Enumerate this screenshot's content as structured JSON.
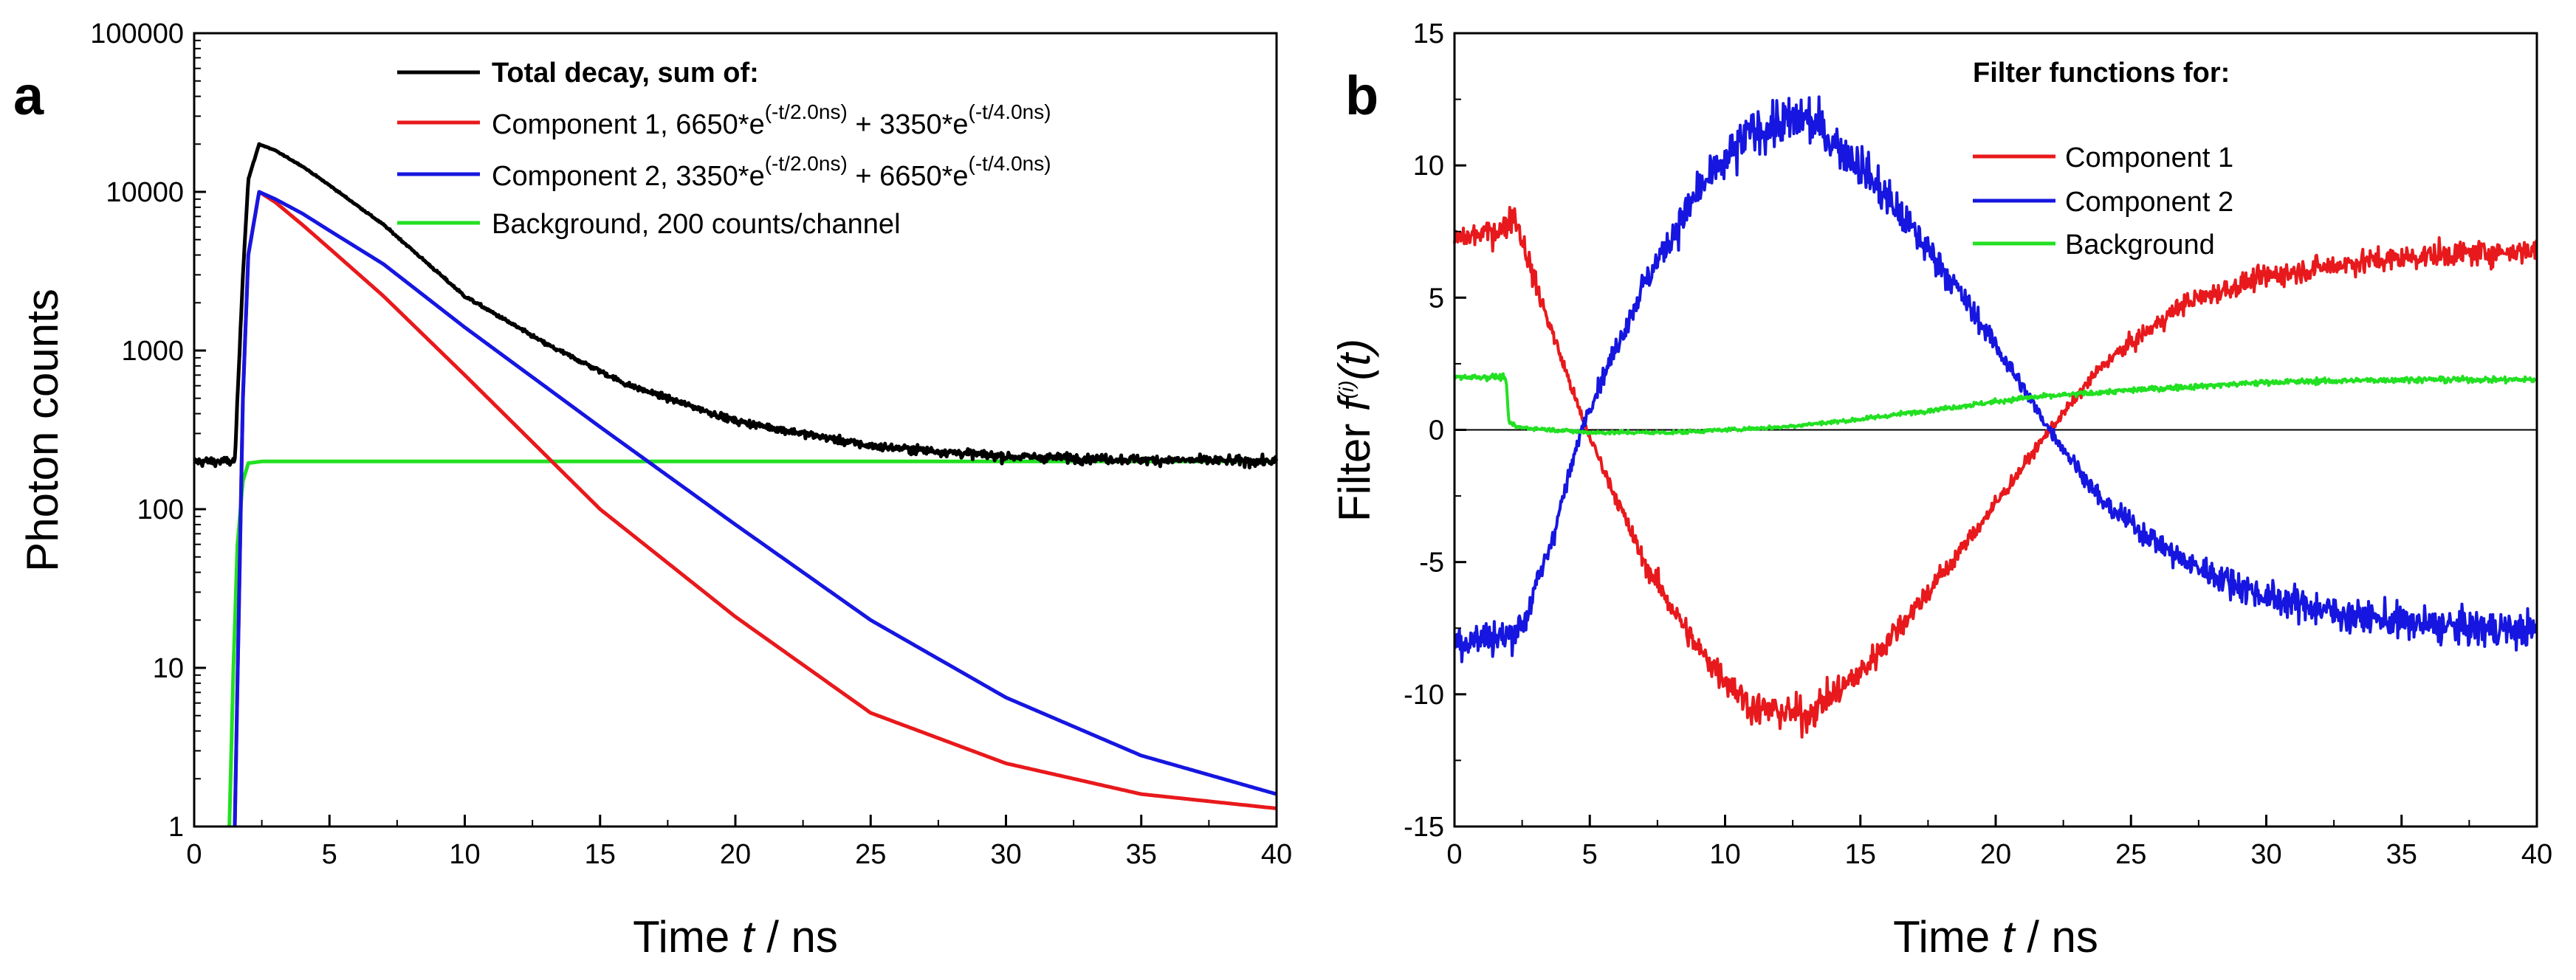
{
  "colors": {
    "black": "#000000",
    "red": "#e8191c",
    "blue": "#1616e0",
    "green": "#22e022"
  },
  "chart_data": [
    {
      "panel": "a",
      "type": "line",
      "yscale": "log",
      "xlabel_parts": [
        "Time ",
        "t",
        " / ns"
      ],
      "ylabel": "Photon counts",
      "xlim": [
        0,
        40
      ],
      "ylim": [
        1,
        100000
      ],
      "xticks": [
        0,
        5,
        10,
        15,
        20,
        25,
        30,
        35,
        40
      ],
      "yticks": [
        1,
        10,
        100,
        1000,
        10000,
        100000
      ],
      "legend_position": "top-right",
      "legend": {
        "header": "Total decay, sum of:",
        "c1": {
          "base": "Component 1, 6650*e",
          "exp1": "(-t/2.0ns)",
          "mid": " + 3350*e",
          "exp2": "(-t/4.0ns)"
        },
        "c2": {
          "base": "Component 2, 3350*e",
          "exp1": "(-t/2.0ns)",
          "mid": " + 6650*e",
          "exp2": "(-t/4.0ns)"
        },
        "bg": "Background, 200 counts/channel"
      },
      "series": [
        {
          "name": "Total decay",
          "color_key": "black",
          "noise": true,
          "x": [
            0,
            1.5,
            1.8,
            2.0,
            2.4,
            3,
            4,
            5,
            7,
            10,
            13,
            16,
            20,
            25,
            30,
            35,
            40
          ],
          "values": [
            200,
            200,
            3000,
            12000,
            20000,
            18200,
            14500,
            11000,
            6200,
            2200,
            1100,
            610,
            360,
            250,
            215,
            205,
            200
          ]
        },
        {
          "name": "Component 1",
          "color_key": "red",
          "noise": false,
          "x": [
            1.5,
            1.8,
            2.0,
            2.4,
            3,
            4,
            5,
            7,
            10,
            15,
            20,
            25,
            30,
            35,
            40
          ],
          "values": [
            1,
            500,
            4000,
            10000,
            8600,
            6200,
            4400,
            2200,
            700,
            100,
            21,
            5.2,
            2.5,
            1.6,
            1.3
          ]
        },
        {
          "name": "Component 2",
          "color_key": "blue",
          "noise": false,
          "x": [
            1.5,
            1.8,
            2.0,
            2.4,
            3,
            4,
            5,
            7,
            10,
            15,
            20,
            25,
            30,
            35,
            40
          ],
          "values": [
            1,
            500,
            4000,
            10000,
            9000,
            7300,
            5700,
            3500,
            1400,
            330,
            80,
            20,
            6.5,
            2.8,
            1.6
          ]
        },
        {
          "name": "Background",
          "color_key": "green",
          "noise": false,
          "x": [
            1.3,
            1.45,
            1.6,
            1.8,
            2.0,
            2.5,
            40
          ],
          "values": [
            1,
            10,
            60,
            150,
            195,
            200,
            200
          ]
        }
      ]
    },
    {
      "panel": "b",
      "type": "line",
      "yscale": "linear",
      "xlabel_parts": [
        "Time ",
        "t",
        " / ns"
      ],
      "ylabel_parts": [
        "Filter ",
        "f",
        "(i)",
        "(t)"
      ],
      "xlim": [
        0,
        40
      ],
      "ylim": [
        -15,
        15
      ],
      "xticks": [
        0,
        5,
        10,
        15,
        20,
        25,
        30,
        35,
        40
      ],
      "yticks": [
        -15,
        -10,
        -5,
        0,
        5,
        10,
        15
      ],
      "legend_position": "top-right",
      "legend": {
        "header": "Filter functions for:",
        "c1": "Component 1",
        "c2": "Component 2",
        "bg": "Background"
      },
      "series": [
        {
          "name": "Component 1",
          "color_key": "red",
          "x": [
            0,
            1.8,
            2.2,
            3,
            4.8,
            7,
            9,
            11,
            13,
            15,
            18,
            20,
            22,
            24,
            27,
            30,
            33,
            36,
            40
          ],
          "values": [
            7.2,
            7.6,
            8.2,
            5.5,
            0.2,
            -5.0,
            -8.3,
            -10.5,
            -10.8,
            -9.2,
            -5.5,
            -2.8,
            0.0,
            2.5,
            4.8,
            5.8,
            6.3,
            6.6,
            6.8
          ]
        },
        {
          "name": "Component 2",
          "color_key": "blue",
          "x": [
            0,
            2.0,
            2.6,
            3.5,
            4.8,
            7,
            9,
            11,
            13,
            15,
            18,
            20,
            22,
            24,
            27,
            30,
            33,
            36,
            40
          ],
          "values": [
            -8.0,
            -7.8,
            -7.2,
            -4.5,
            0.4,
            5.5,
            9.0,
            11.3,
            11.8,
            10.0,
            6.2,
            3.2,
            0.0,
            -2.8,
            -5.0,
            -6.3,
            -7.0,
            -7.4,
            -7.6
          ]
        },
        {
          "name": "Background",
          "color_key": "green",
          "x": [
            0,
            1.9,
            2.0,
            2.3,
            5,
            8,
            10,
            12,
            15,
            18,
            21,
            25,
            30,
            35,
            40
          ],
          "values": [
            2.0,
            2.0,
            0.3,
            0.1,
            -0.1,
            -0.1,
            0.0,
            0.1,
            0.4,
            0.8,
            1.2,
            1.5,
            1.8,
            1.9,
            1.9
          ]
        }
      ]
    }
  ]
}
